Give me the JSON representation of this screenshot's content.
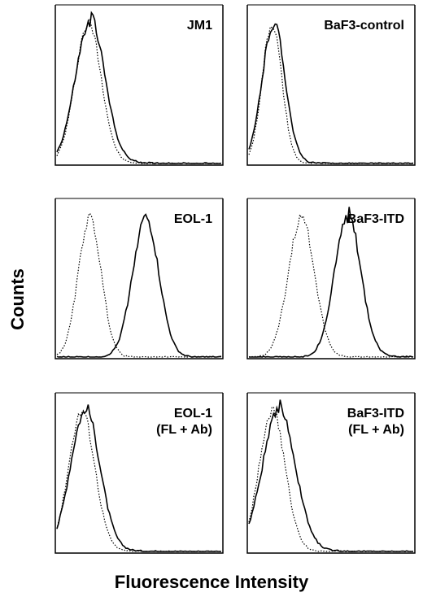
{
  "figure": {
    "ylabel": "Counts",
    "xlabel": "Fluorescence Intensity"
  },
  "chart_data": [
    {
      "type": "line",
      "panel": "top-left",
      "label_lines": [
        "JM1"
      ],
      "series": [
        {
          "style": "dotted",
          "peak_x": 0.19,
          "width": 0.08,
          "tail": 0.02
        },
        {
          "style": "solid",
          "peak_x": 0.2,
          "width": 0.09,
          "tail": 0.07
        }
      ]
    },
    {
      "type": "line",
      "panel": "top-right",
      "label_lines": [
        "BaF3-control"
      ],
      "series": [
        {
          "style": "dotted",
          "peak_x": 0.14,
          "width": 0.06,
          "tail": 0.01
        },
        {
          "style": "solid",
          "peak_x": 0.15,
          "width": 0.07,
          "tail": 0.02
        }
      ]
    },
    {
      "type": "line",
      "panel": "middle-left",
      "label_lines": [
        "EOL-1"
      ],
      "series": [
        {
          "style": "dotted",
          "peak_x": 0.2,
          "width": 0.07,
          "tail": 0.0
        },
        {
          "style": "solid",
          "peak_x": 0.54,
          "width": 0.08,
          "tail": 0.0
        }
      ]
    },
    {
      "type": "line",
      "panel": "middle-right",
      "label_lines": [
        "BaF3-ITD"
      ],
      "series": [
        {
          "style": "dotted",
          "peak_x": 0.32,
          "width": 0.08,
          "tail": 0.0
        },
        {
          "style": "solid",
          "peak_x": 0.6,
          "width": 0.08,
          "tail": 0.05
        }
      ]
    },
    {
      "type": "line",
      "panel": "bottom-left",
      "label_lines": [
        "EOL-1",
        "(FL + Ab)"
      ],
      "series": [
        {
          "style": "dotted",
          "peak_x": 0.15,
          "width": 0.08,
          "tail": 0.02
        },
        {
          "style": "solid",
          "peak_x": 0.17,
          "width": 0.09,
          "tail": 0.05
        }
      ]
    },
    {
      "type": "line",
      "panel": "bottom-right",
      "label_lines": [
        "BaF3-ITD",
        "(FL + Ab)"
      ],
      "series": [
        {
          "style": "dotted",
          "peak_x": 0.14,
          "width": 0.08,
          "tail": 0.02
        },
        {
          "style": "solid",
          "peak_x": 0.18,
          "width": 0.1,
          "tail": 0.06
        }
      ]
    }
  ]
}
